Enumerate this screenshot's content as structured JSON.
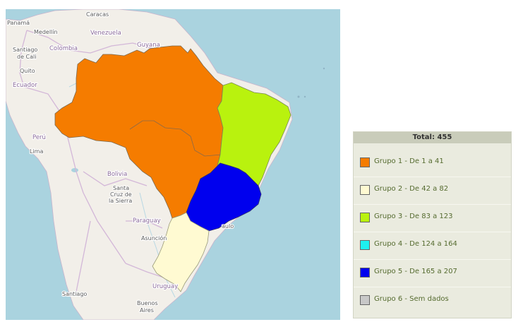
{
  "map": {
    "labels": {
      "panama": "Panamá",
      "caracas": "Caracas",
      "medellin": "Medellín",
      "venezuela": "Venezuela",
      "guyana": "Guyana",
      "santiago_de_cali_1": "Santiago",
      "santiago_de_cali_2": "de Cali",
      "colombia": "Colombia",
      "quito": "Quito",
      "ecuador": "Ecuador",
      "peru": "Perú",
      "lima": "Lima",
      "bolivia": "Bolivia",
      "santa_cruz_1": "Santa",
      "santa_cruz_2": "Cruz de",
      "santa_cruz_3": "la Sierra",
      "paraguay": "Paraguay",
      "asuncion": "Asunción",
      "sao_paulo_fragment": "aulo",
      "uruguay": "Uruguay",
      "santiago": "Santiago",
      "buenos_aires_1": "Buenos",
      "buenos_aires_2": "Aires"
    },
    "regions": [
      {
        "name": "Norte e Centro-Oeste",
        "group": 1
      },
      {
        "name": "Nordeste",
        "group": 3
      },
      {
        "name": "Sudeste",
        "group": 5
      },
      {
        "name": "Sul",
        "group": 2
      }
    ]
  },
  "legend": {
    "title": "Total: 455",
    "items": [
      {
        "label": "Grupo 1 - De 1 a 41",
        "color": "#f57c00"
      },
      {
        "label": "Grupo 2 - De 42 a 82",
        "color": "#fffad2"
      },
      {
        "label": "Grupo 3 - De 83 a 123",
        "color": "#b9f20e"
      },
      {
        "label": "Grupo 4 - De 124 a 164",
        "color": "#1ef0f0"
      },
      {
        "label": "Grupo 5 - De 165 a 207",
        "color": "#0000ee"
      },
      {
        "label": "Grupo 6 - Sem dados",
        "color": "#c8c8c8"
      }
    ]
  }
}
